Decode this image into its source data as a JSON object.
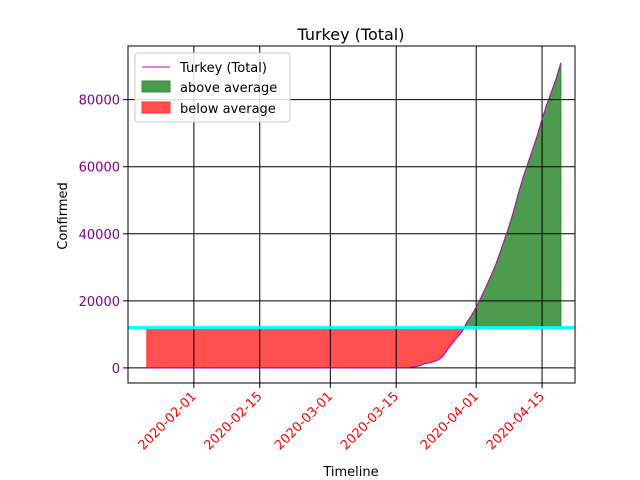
{
  "chart_data": {
    "type": "area",
    "title": "Turkey (Total)",
    "xlabel": "Timeline",
    "ylabel": "Confirmed",
    "x_start": "2020-01-22",
    "xlim": [
      "2020-01-18",
      "2020-04-22"
    ],
    "ylim": [
      -4500,
      96000
    ],
    "x_ticks": [
      "2020-02-01",
      "2020-02-15",
      "2020-03-01",
      "2020-03-15",
      "2020-04-01",
      "2020-04-15"
    ],
    "y_ticks": [
      0,
      20000,
      40000,
      60000,
      80000
    ],
    "average": 12000,
    "series": [
      {
        "name": "Turkey (Total)",
        "points": [
          [
            "2020-01-22",
            0
          ],
          [
            "2020-03-10",
            0
          ],
          [
            "2020-03-11",
            1
          ],
          [
            "2020-03-13",
            5
          ],
          [
            "2020-03-15",
            18
          ],
          [
            "2020-03-17",
            98
          ],
          [
            "2020-03-18",
            191
          ],
          [
            "2020-03-19",
            359
          ],
          [
            "2020-03-20",
            670
          ],
          [
            "2020-03-21",
            1236
          ],
          [
            "2020-03-22",
            1529
          ],
          [
            "2020-03-23",
            1872
          ],
          [
            "2020-03-24",
            2433
          ],
          [
            "2020-03-25",
            3629
          ],
          [
            "2020-03-26",
            5698
          ],
          [
            "2020-03-27",
            7402
          ],
          [
            "2020-03-28",
            9217
          ],
          [
            "2020-03-29",
            10827
          ],
          [
            "2020-03-30",
            13531
          ],
          [
            "2020-03-31",
            15679
          ],
          [
            "2020-04-01",
            18135
          ],
          [
            "2020-04-02",
            20921
          ],
          [
            "2020-04-03",
            23934
          ],
          [
            "2020-04-04",
            27069
          ],
          [
            "2020-04-05",
            30217
          ],
          [
            "2020-04-06",
            34109
          ],
          [
            "2020-04-07",
            38226
          ],
          [
            "2020-04-08",
            42282
          ],
          [
            "2020-04-09",
            47029
          ],
          [
            "2020-04-10",
            52167
          ],
          [
            "2020-04-11",
            56956
          ],
          [
            "2020-04-12",
            61049
          ],
          [
            "2020-04-13",
            65111
          ],
          [
            "2020-04-14",
            69392
          ],
          [
            "2020-04-15",
            74193
          ],
          [
            "2020-04-16",
            78546
          ],
          [
            "2020-04-17",
            82329
          ],
          [
            "2020-04-18",
            86306
          ],
          [
            "2020-04-19",
            90980
          ]
        ]
      }
    ],
    "legend": {
      "placement": "top-left",
      "entries": [
        "Turkey (Total)",
        "above average",
        "below average"
      ]
    },
    "grid": true,
    "colors": {
      "line": "#bf00bf",
      "above": "#2e8b2e",
      "below": "#ff3030",
      "average_line": "#00ffff",
      "ytick": "#800080",
      "xtick": "#ff0000",
      "grid": "#000000"
    }
  }
}
